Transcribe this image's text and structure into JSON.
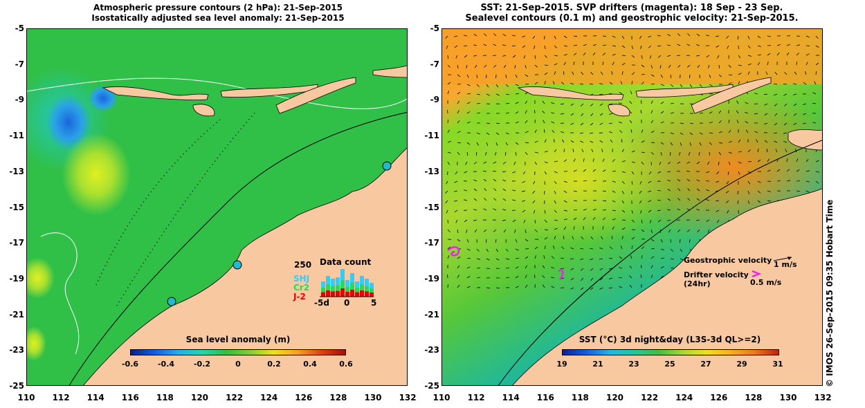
{
  "left_panel": {
    "title_line1": "Atmospheric pressure contours (2 hPa): 21-Sep-2015",
    "title_line2": "Isostatically adjusted sea level anomaly: 21-Sep-2015",
    "colorbar": {
      "label": "Sea level anomaly (m)",
      "ticks": [
        "-0.6",
        "-0.4",
        "-0.2",
        "0",
        "0.2",
        "0.4",
        "0.6"
      ]
    },
    "histogram": {
      "title": "Data count",
      "max_label": "250",
      "legend": [
        {
          "name": "SHJ",
          "color": "#33ccff"
        },
        {
          "name": "Cr2",
          "color": "#22dd55"
        },
        {
          "name": "J-2",
          "color": "#ee0000"
        }
      ],
      "x_ticks": [
        "-5d",
        "0",
        "5"
      ]
    }
  },
  "right_panel": {
    "title_line1": "SST: 21-Sep-2015. SVP drifters (magenta): 18 Sep - 23 Sep.",
    "title_line2": "Sealevel contours (0.1 m) and geostrophic velocity: 21-Sep-2015.",
    "colorbar": {
      "label": "SST (°C) 3d night&day (L3S-3d QL>=2)",
      "ticks": [
        "19",
        "21",
        "23",
        "25",
        "27",
        "29",
        "31"
      ]
    },
    "legend": {
      "geostrophic_label": "Geostrophic velocity",
      "geostrophic_value": "1 m/s",
      "drifter_label_line1": "Drifter velocity",
      "drifter_label_line2": "(24hr)",
      "drifter_value": "0.5 m/s"
    }
  },
  "y_ticks": [
    "-5",
    "-7",
    "-9",
    "-11",
    "-13",
    "-15",
    "-17",
    "-19",
    "-21",
    "-23",
    "-25"
  ],
  "x_ticks": [
    "110",
    "112",
    "114",
    "116",
    "118",
    "120",
    "122",
    "124",
    "126",
    "128",
    "130",
    "132"
  ],
  "credit": "© IMOS 26-Sep-2015 09:35 Hobart Time",
  "colors": {
    "land": "#f8c8a0",
    "ocean_green": "#33c848",
    "sst_orange": "#f89a30",
    "drifter": "#ee22ee"
  }
}
